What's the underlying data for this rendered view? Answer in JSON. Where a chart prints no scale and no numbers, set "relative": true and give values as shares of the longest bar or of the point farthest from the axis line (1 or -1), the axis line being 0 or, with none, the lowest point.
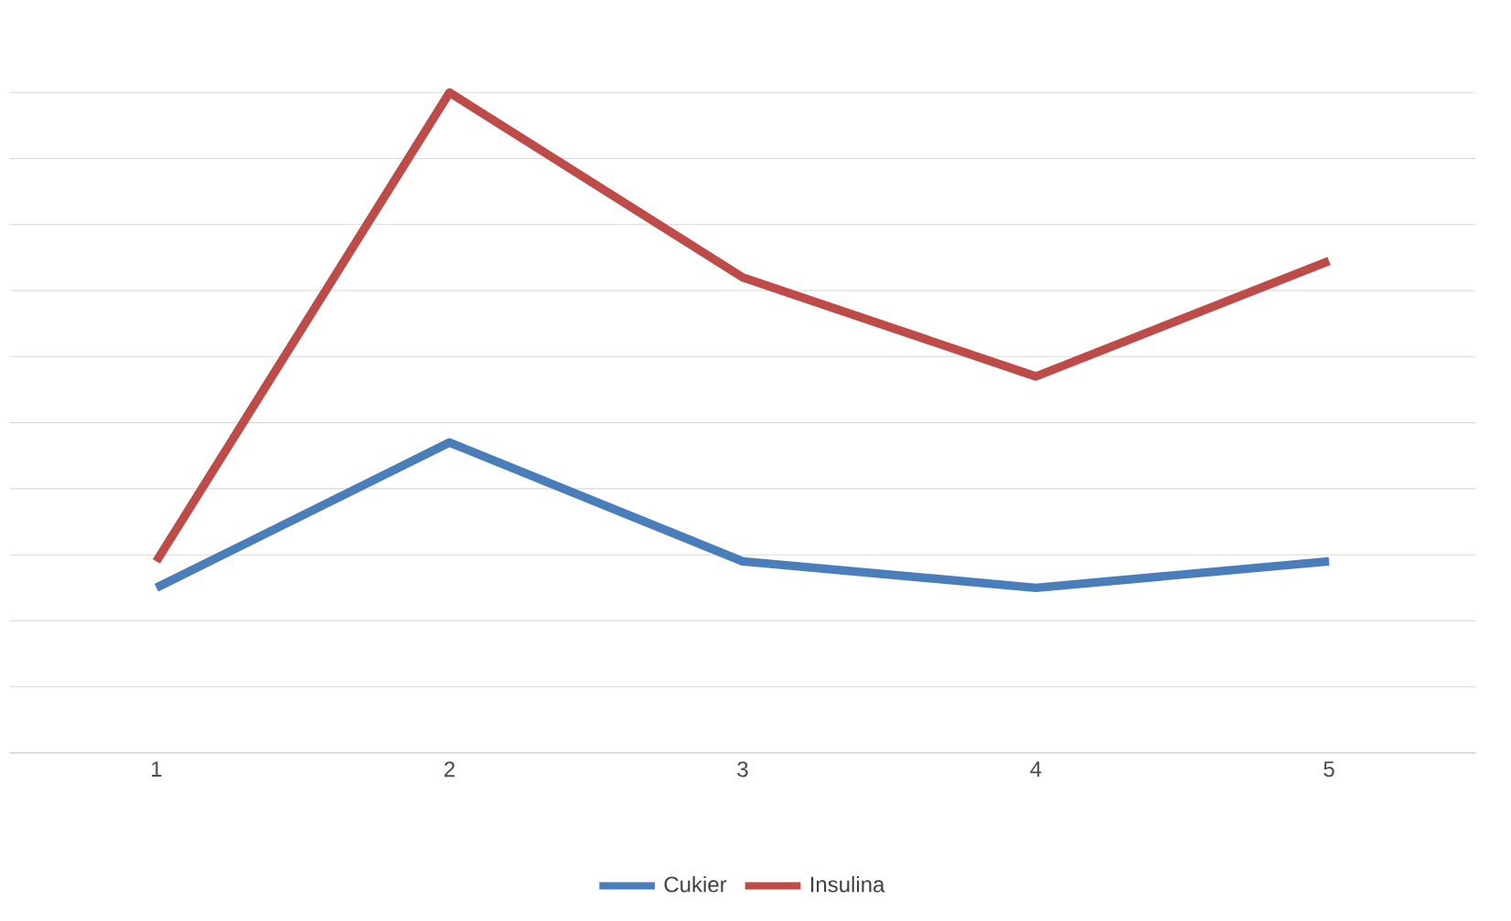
{
  "chart_data": {
    "type": "line",
    "relative": true,
    "categories": [
      "1",
      "2",
      "3",
      "4",
      "5"
    ],
    "series": [
      {
        "name": "Cukier",
        "color": "#4a7ebb",
        "values": [
          0.25,
          0.47,
          0.29,
          0.25,
          0.29
        ]
      },
      {
        "name": "Insulina",
        "color": "#be4b48",
        "values": [
          0.29,
          1,
          0.72,
          0.57,
          0.745
        ]
      }
    ],
    "grid": "y",
    "legend": "bottom",
    "marker": "none",
    "line_style": "solid"
  }
}
